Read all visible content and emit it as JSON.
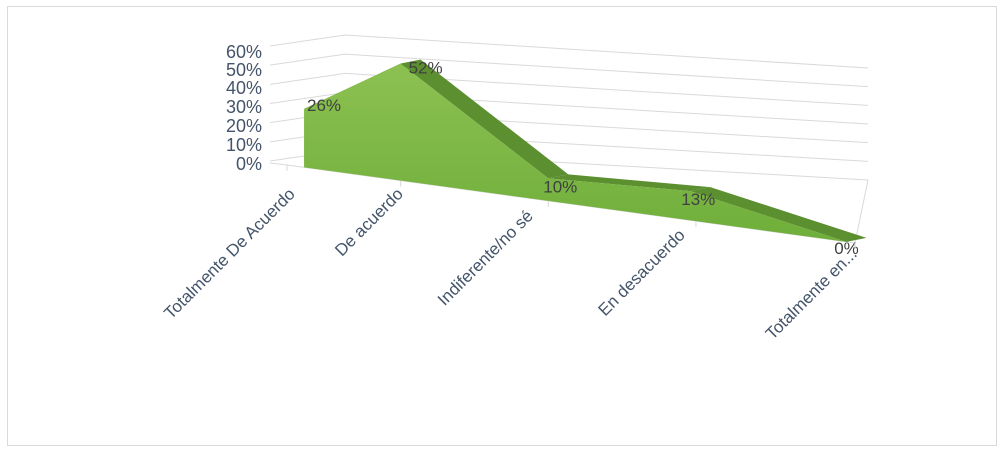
{
  "chart_data": {
    "type": "area",
    "three_d": true,
    "categories": [
      "Totalmente De Acuerdo",
      "De acuerdo",
      "Indiferente/no sé",
      "En desacuerdo",
      "Totalmente en..."
    ],
    "series": [
      {
        "values": [
          26,
          52,
          10,
          13,
          0
        ],
        "data_labels": [
          "26%",
          "52%",
          "10%",
          "13%",
          "0%"
        ]
      }
    ],
    "y_ticks": [
      "0%",
      "10%",
      "20%",
      "30%",
      "40%",
      "50%",
      "60%"
    ],
    "ylim": [
      0,
      60
    ],
    "grid": true,
    "legend": "none",
    "colors": {
      "area": "#6fae3a",
      "area_light": "#8cc152",
      "area_top": "#5b8f2f",
      "grid": "#d9d9d9",
      "text": "#44546a"
    }
  }
}
